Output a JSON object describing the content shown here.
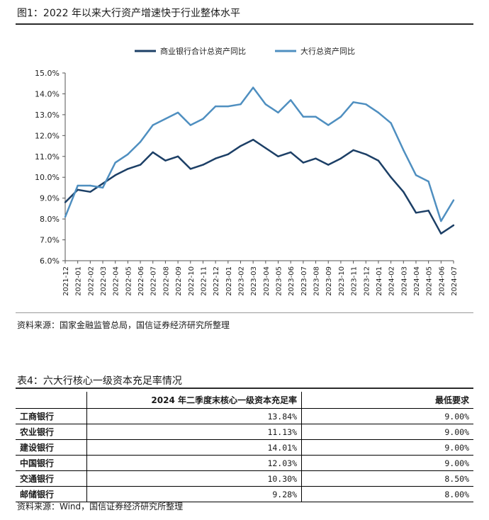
{
  "figure": {
    "title": "图1：2022 年以来大行资产增速快于行业整体水平",
    "source": "资料来源：国家金融监管总局，国信证券经济研究所整理"
  },
  "chart_data": {
    "type": "line",
    "title": "图1：2022 年以来大行资产增速快于行业整体水平",
    "ylim": [
      6.0,
      15.0
    ],
    "yticks": [
      "6.0%",
      "7.0%",
      "8.0%",
      "9.0%",
      "10.0%",
      "11.0%",
      "12.0%",
      "13.0%",
      "14.0%",
      "15.0%"
    ],
    "grid": false,
    "legend_position": "top-center",
    "categories": [
      "2021-12",
      "2022-01",
      "2022-02",
      "2022-03",
      "2022-04",
      "2022-05",
      "2022-06",
      "2022-07",
      "2022-08",
      "2022-09",
      "2022-10",
      "2022-11",
      "2022-12",
      "2023-01",
      "2023-02",
      "2023-03",
      "2023-04",
      "2023-05",
      "2023-06",
      "2023-07",
      "2023-08",
      "2023-09",
      "2023-10",
      "2023-11",
      "2023-12",
      "2024-01",
      "2024-02",
      "2024-03",
      "2024-04",
      "2024-05",
      "2024-06",
      "2024-07"
    ],
    "series": [
      {
        "name": "商业银行合计总资产同比",
        "color": "#1c3f66",
        "values": [
          8.8,
          9.4,
          9.3,
          9.7,
          10.1,
          10.4,
          10.6,
          11.2,
          10.8,
          11.0,
          10.4,
          10.6,
          10.9,
          11.1,
          11.5,
          11.8,
          11.4,
          11.0,
          11.2,
          10.7,
          10.9,
          10.6,
          10.9,
          11.3,
          11.1,
          10.8,
          10.0,
          9.3,
          8.3,
          8.4,
          7.3,
          7.7
        ]
      },
      {
        "name": "大行总资产同比",
        "color": "#4f8fc0",
        "values": [
          8.1,
          9.6,
          9.6,
          9.5,
          10.7,
          11.1,
          11.7,
          12.5,
          12.8,
          13.1,
          12.5,
          12.8,
          13.4,
          13.4,
          13.5,
          14.3,
          13.5,
          13.1,
          13.7,
          12.9,
          12.9,
          12.5,
          12.9,
          13.6,
          13.5,
          13.1,
          12.6,
          11.3,
          10.1,
          9.8,
          7.9,
          8.9
        ]
      }
    ]
  },
  "table": {
    "title": "表4：六大行核心一级资本充足率情况",
    "headers": [
      "",
      "2024 年二季度末核心一级资本充足率",
      "最低要求"
    ],
    "rows": [
      {
        "bank": "工商银行",
        "ratio": "13.84%",
        "min": "9.00%"
      },
      {
        "bank": "农业银行",
        "ratio": "11.13%",
        "min": "9.00%"
      },
      {
        "bank": "建设银行",
        "ratio": "14.01%",
        "min": "9.00%"
      },
      {
        "bank": "中国银行",
        "ratio": "12.03%",
        "min": "9.00%"
      },
      {
        "bank": "交通银行",
        "ratio": "10.30%",
        "min": "8.50%"
      },
      {
        "bank": "邮储银行",
        "ratio": "9.28%",
        "min": "8.00%"
      }
    ],
    "source": "资料来源：Wind，国信证券经济研究所整理"
  }
}
